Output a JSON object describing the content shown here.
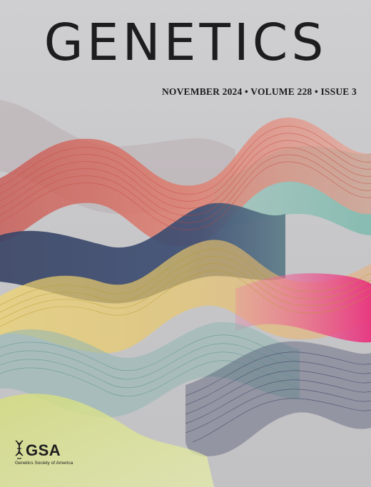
{
  "journal": {
    "title": "GENETICS",
    "issue_line": "NOVEMBER 2024 • VOLUME 228 • ISSUE 3"
  },
  "publisher": {
    "logo_text": "GSA",
    "logo_subtext": "Genetics Society of America",
    "logo_icon": "dna-helix-icon"
  },
  "art": {
    "background": "#c8c8ca",
    "wave_colors": [
      "#d9573f",
      "#e48a7a",
      "#3c4a6e",
      "#7ab8ad",
      "#e3c05a",
      "#e8337e",
      "#8fb3b0",
      "#2d3558",
      "#c9d96a"
    ]
  }
}
